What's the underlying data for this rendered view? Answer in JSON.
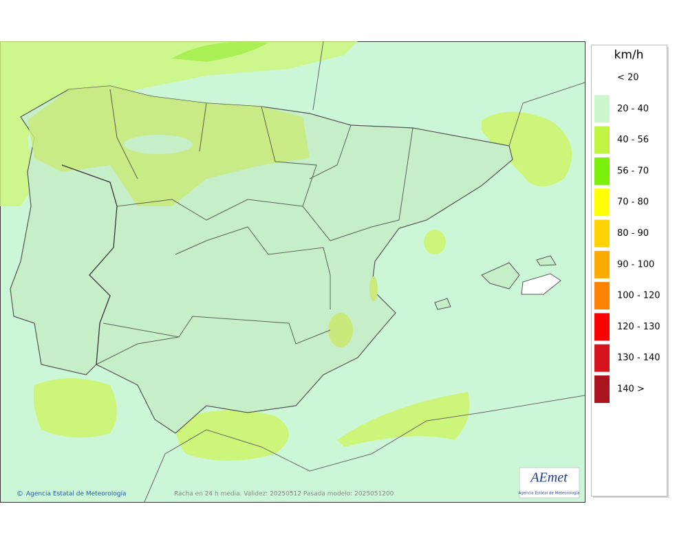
{
  "map": {
    "footer_credit": "Agencia Estatal de Meteorología",
    "footer_caption": "Racha en 24 h media. Validez: 20250512 Pasada modelo: 2025051200"
  },
  "logo": {
    "text": "AEmet",
    "subtitle": "Agencia Estatal de Meteorología"
  },
  "legend": {
    "title": "km/h",
    "items": [
      {
        "label": "< 20",
        "color": "#ffffff"
      },
      {
        "label": "20 - 40",
        "color": "#ccf7cc"
      },
      {
        "label": "40 - 56",
        "color": "#bff542"
      },
      {
        "label": "56 - 70",
        "color": "#78f00a"
      },
      {
        "label": "70 - 80",
        "color": "#ffff00"
      },
      {
        "label": "80 - 90",
        "color": "#ffd200"
      },
      {
        "label": "90 - 100",
        "color": "#ffaa00"
      },
      {
        "label": "100 - 120",
        "color": "#ff8200"
      },
      {
        "label": "120 - 130",
        "color": "#ff0000"
      },
      {
        "label": "130 - 140",
        "color": "#d7141e"
      },
      {
        "label": "140 >",
        "color": "#aa141e"
      }
    ]
  }
}
